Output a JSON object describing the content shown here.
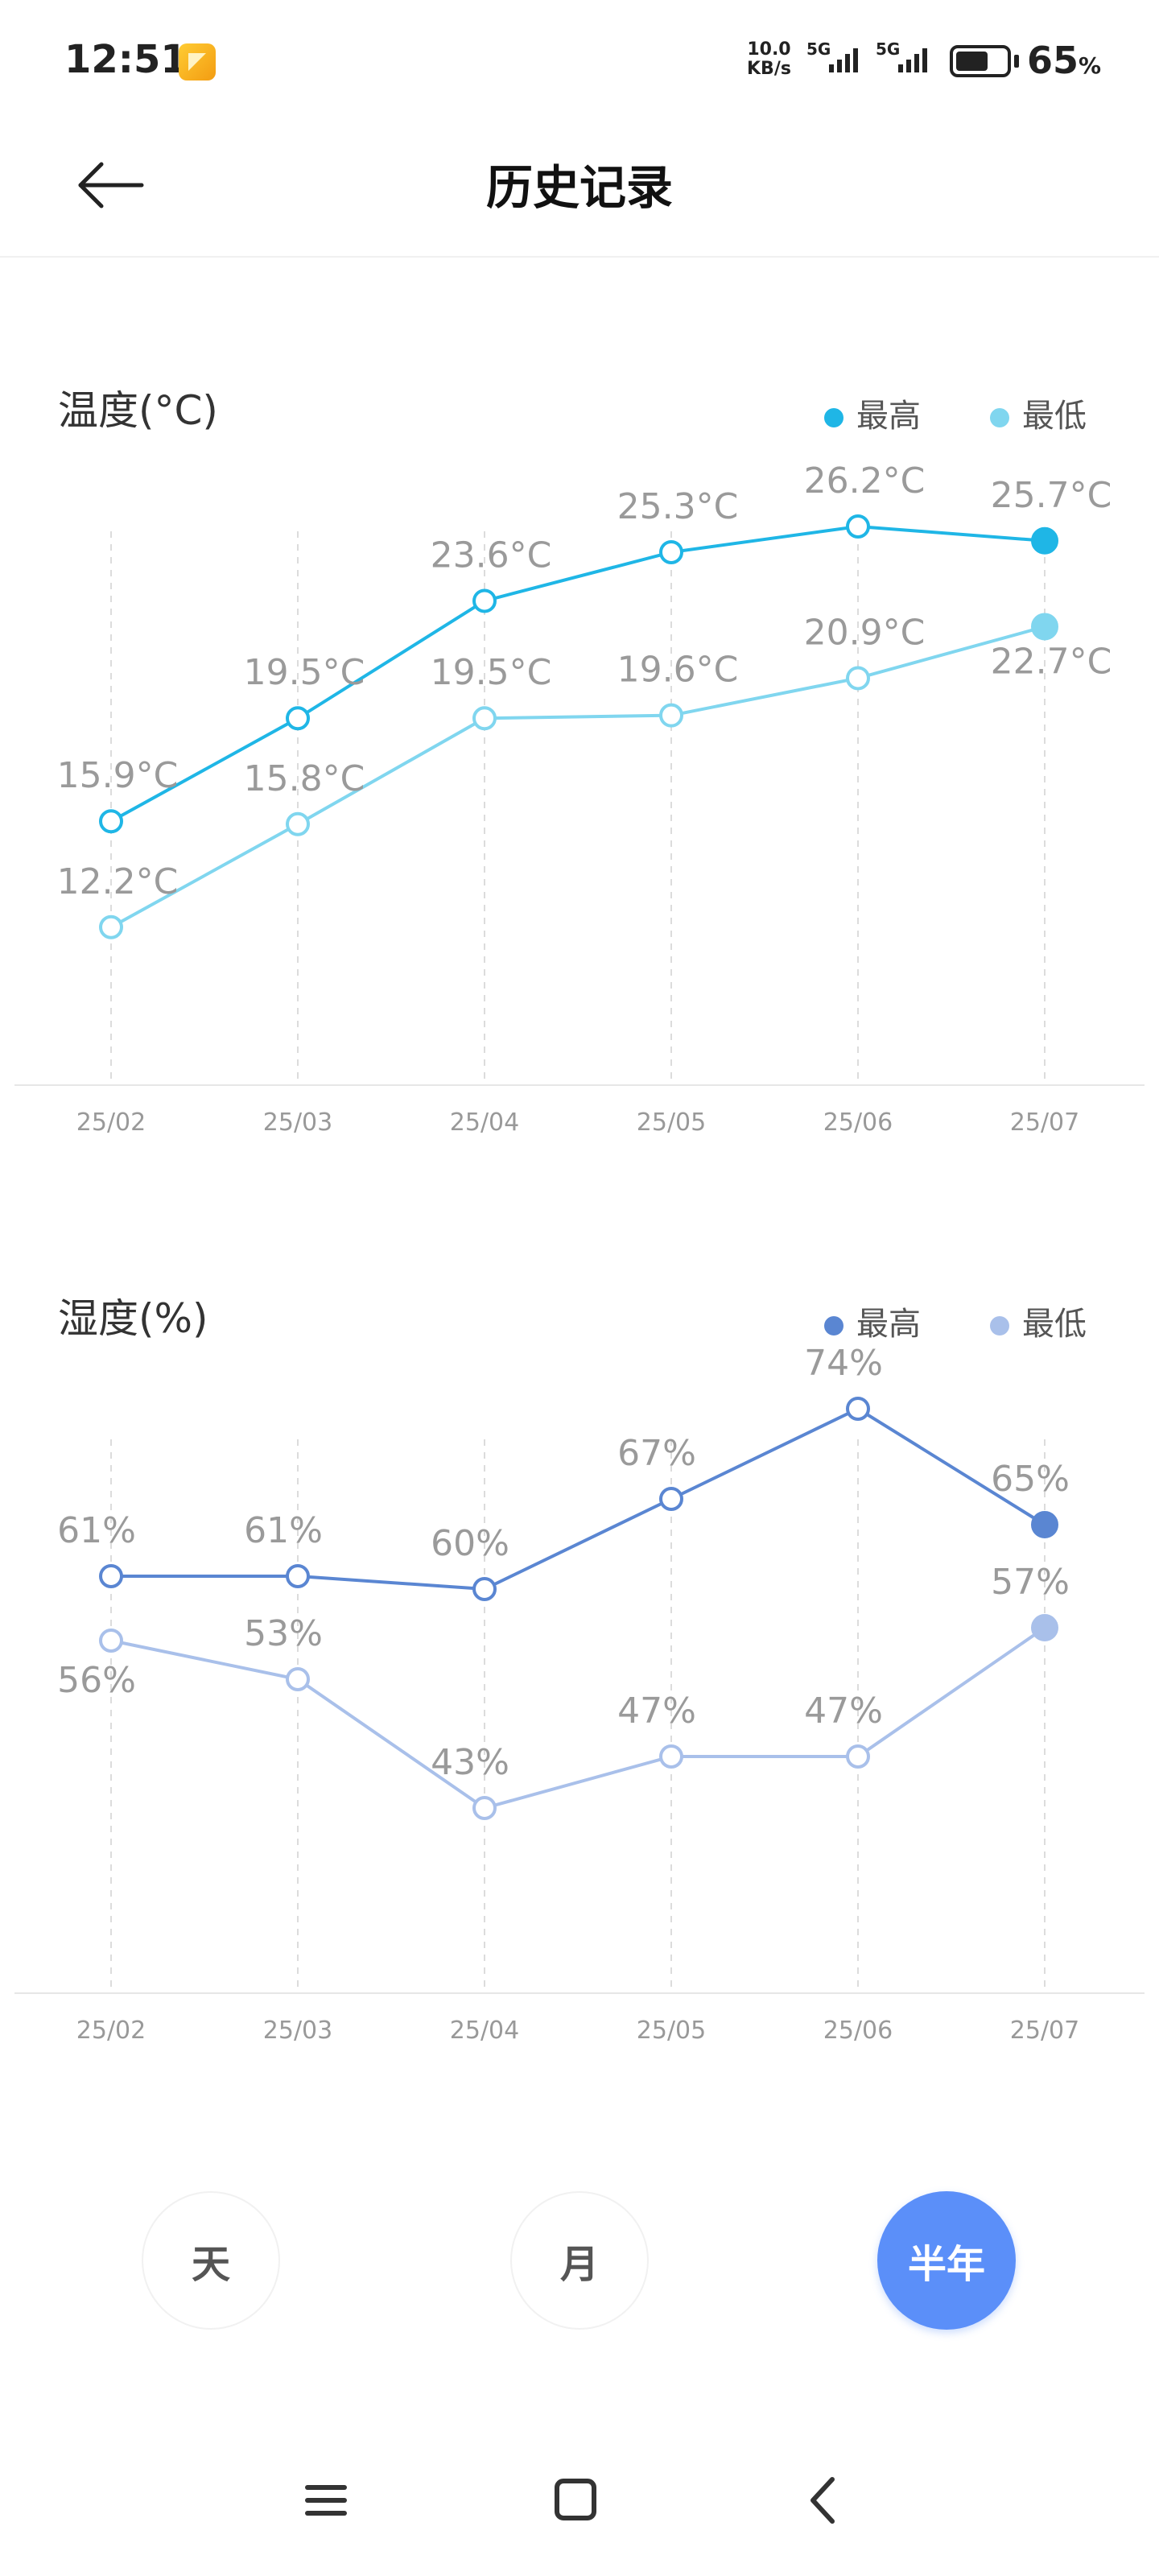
{
  "status_bar": {
    "time": "12:51",
    "net_speed_value": "10.0",
    "net_speed_unit": "KB/s",
    "signal_1": "5G",
    "signal_2": "5G",
    "battery_percent": 65,
    "battery_text": "65",
    "battery_unit": "%"
  },
  "header": {
    "title": "历史记录",
    "back_icon": "arrow-left-icon"
  },
  "colors": {
    "temp_high": "#1fb6e6",
    "temp_low": "#80d6ef",
    "hum_high": "#5a86d2",
    "hum_low": "#a9c0ea",
    "active": "#5b8ff9"
  },
  "chart_data": [
    {
      "type": "line",
      "title": "温度(°C)",
      "categories": [
        "25/02",
        "25/03",
        "25/04",
        "25/05",
        "25/06",
        "25/07"
      ],
      "ylim": [
        10,
        28
      ],
      "grid": "vertical dashed",
      "legend_position": "top-right",
      "series": [
        {
          "name": "最高",
          "values": [
            15.9,
            19.5,
            23.6,
            25.3,
            26.2,
            25.7
          ],
          "labels": [
            "15.9°C",
            "19.5°C",
            "23.6°C",
            "25.3°C",
            "26.2°C",
            "25.7°C"
          ]
        },
        {
          "name": "最低",
          "values": [
            12.2,
            15.8,
            19.5,
            19.6,
            20.9,
            22.7
          ],
          "labels": [
            "12.2°C",
            "15.8°C",
            "19.5°C",
            "19.6°C",
            "20.9°C",
            "22.7°C"
          ]
        }
      ]
    },
    {
      "type": "line",
      "title": "湿度(%)",
      "categories": [
        "25/02",
        "25/03",
        "25/04",
        "25/05",
        "25/06",
        "25/07"
      ],
      "ylim": [
        36,
        76
      ],
      "grid": "vertical dashed",
      "legend_position": "top-right",
      "series": [
        {
          "name": "最高",
          "values": [
            61,
            61,
            60,
            67,
            74,
            65
          ],
          "labels": [
            "61%",
            "61%",
            "60%",
            "67%",
            "74%",
            "65%"
          ]
        },
        {
          "name": "最低",
          "values": [
            56,
            53,
            43,
            47,
            47,
            57
          ],
          "labels": [
            "56%",
            "53%",
            "43%",
            "47%",
            "47%",
            "57%"
          ]
        }
      ]
    }
  ],
  "period_selector": {
    "options": [
      "天",
      "月",
      "半年"
    ],
    "selected": "半年"
  },
  "nav_bar": {
    "menu_icon": "menu-icon",
    "home_icon": "home-icon",
    "back_icon": "back-chevron-icon"
  }
}
